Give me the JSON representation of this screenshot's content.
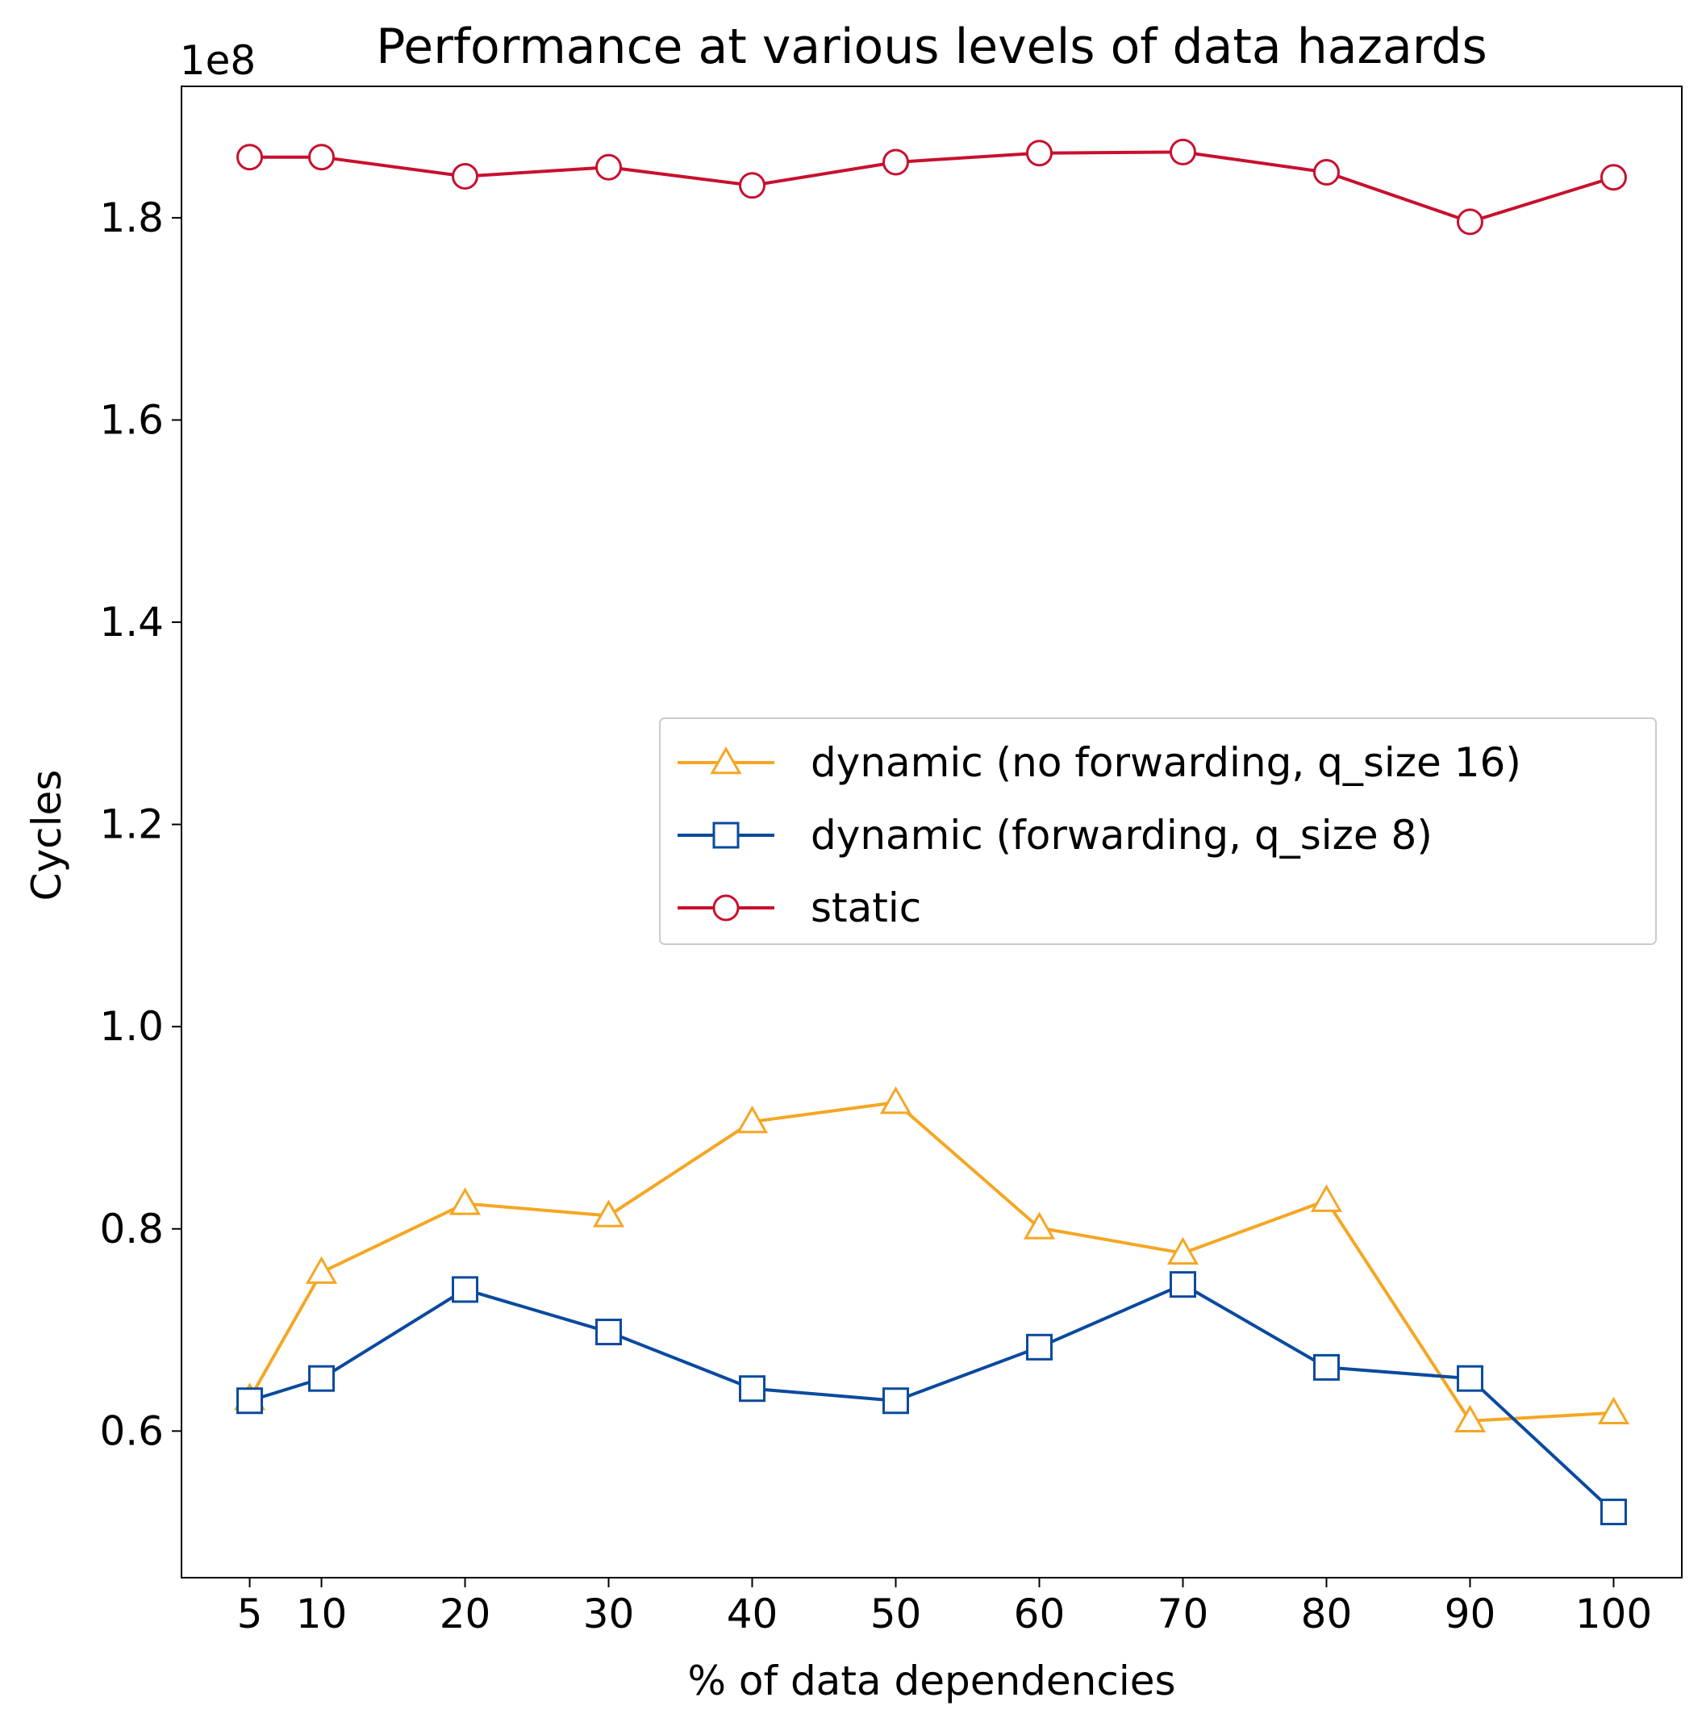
{
  "chart_data": {
    "type": "line",
    "title": "Performance at various levels of data hazards",
    "xlabel": "% of data dependencies",
    "ylabel": "Cycles",
    "y_offset_label": "1e8",
    "x": [
      5,
      10,
      20,
      30,
      40,
      50,
      60,
      70,
      80,
      90,
      100
    ],
    "x_ticks": [
      5,
      10,
      20,
      30,
      40,
      50,
      60,
      70,
      80,
      90,
      100
    ],
    "y_ticks": [
      0.6,
      0.8,
      1.0,
      1.2,
      1.4,
      1.6,
      1.8
    ],
    "y_tick_labels": [
      "0.6",
      "0.8",
      "1.0",
      "1.2",
      "1.4",
      "1.6",
      "1.8"
    ],
    "xlim": [
      0.25,
      104.75
    ],
    "ylim": [
      0.455,
      1.93
    ],
    "grid": false,
    "legend_position": "center-right",
    "series": [
      {
        "name": "dynamic (no forwarding, q_size 16)",
        "color": "#F5A623",
        "marker": "triangle",
        "values": [
          0.632,
          0.757,
          0.825,
          0.813,
          0.906,
          0.925,
          0.801,
          0.776,
          0.828,
          0.61,
          0.618
        ]
      },
      {
        "name": "dynamic (forwarding, q_size 8)",
        "color": "#0A4A9E",
        "marker": "square",
        "values": [
          0.63,
          0.652,
          0.74,
          0.698,
          0.642,
          0.63,
          0.683,
          0.745,
          0.663,
          0.652,
          0.52
        ]
      },
      {
        "name": "static",
        "color": "#C8102E",
        "marker": "circle",
        "values": [
          1.86,
          1.86,
          1.841,
          1.85,
          1.832,
          1.855,
          1.864,
          1.865,
          1.845,
          1.796,
          1.84
        ]
      }
    ]
  }
}
